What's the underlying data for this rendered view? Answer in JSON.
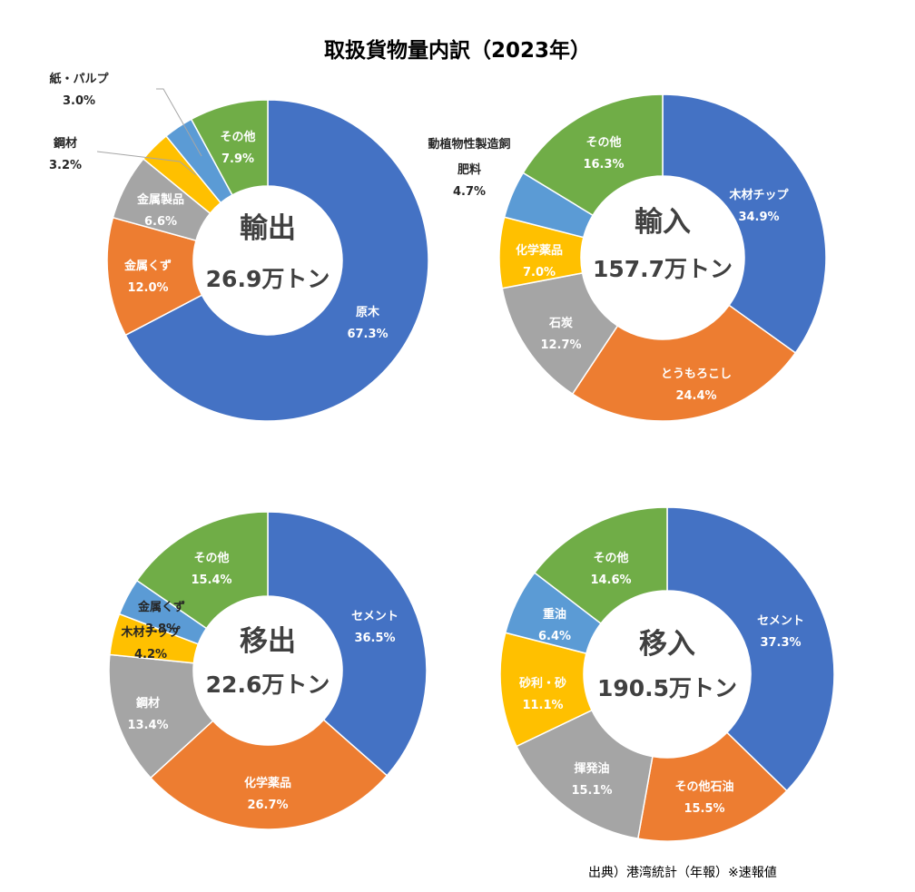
{
  "title": "取扱貨物量内訳（2023年）",
  "source": "出典）港湾統計（年報）※速報値",
  "chart_data": [
    {
      "type": "pie",
      "name": "輸出",
      "total": "26.9万トン",
      "slices": [
        {
          "label": "原木",
          "pct_label": "67.3%",
          "value": 67.3,
          "color": "#4472C4"
        },
        {
          "label": "金属くず",
          "pct_label": "12.0%",
          "value": 12.0,
          "color": "#ED7D31"
        },
        {
          "label": "金属製品",
          "pct_label": "6.6%",
          "value": 6.6,
          "color": "#A5A5A5"
        },
        {
          "label": "鋼材",
          "pct_label": "3.2%",
          "value": 3.2,
          "color": "#FFC000"
        },
        {
          "label": "紙・パルプ",
          "pct_label": "3.0%",
          "value": 3.0,
          "color": "#5B9BD5"
        },
        {
          "label": "その他",
          "pct_label": "7.9%",
          "value": 7.9,
          "color": "#70AD47"
        }
      ]
    },
    {
      "type": "pie",
      "name": "輸入",
      "total": "157.7万トン",
      "slices": [
        {
          "label": "木材チップ",
          "pct_label": "34.9%",
          "value": 34.9,
          "color": "#4472C4"
        },
        {
          "label": "とうもろこし",
          "pct_label": "24.4%",
          "value": 24.4,
          "color": "#ED7D31"
        },
        {
          "label": "石炭",
          "pct_label": "12.7%",
          "value": 12.7,
          "color": "#A5A5A5"
        },
        {
          "label": "化学薬品",
          "pct_label": "7.0%",
          "value": 7.0,
          "color": "#FFC000"
        },
        {
          "label": "動植物性製造飼肥料",
          "pct_label": "4.7%",
          "value": 4.7,
          "color": "#5B9BD5"
        },
        {
          "label": "その他",
          "pct_label": "16.3%",
          "value": 16.3,
          "color": "#70AD47"
        }
      ]
    },
    {
      "type": "pie",
      "name": "移出",
      "total": "22.6万トン",
      "slices": [
        {
          "label": "セメント",
          "pct_label": "36.5%",
          "value": 36.5,
          "color": "#4472C4"
        },
        {
          "label": "化学薬品",
          "pct_label": "26.7%",
          "value": 26.7,
          "color": "#ED7D31"
        },
        {
          "label": "鋼材",
          "pct_label": "13.4%",
          "value": 13.4,
          "color": "#A5A5A5"
        },
        {
          "label": "木材チップ",
          "pct_label": "4.2%",
          "value": 4.2,
          "color": "#FFC000"
        },
        {
          "label": "金属くず",
          "pct_label": "3.8%",
          "value": 3.8,
          "color": "#5B9BD5"
        },
        {
          "label": "その他",
          "pct_label": "15.4%",
          "value": 15.4,
          "color": "#70AD47"
        }
      ]
    },
    {
      "type": "pie",
      "name": "移入",
      "total": "190.5万トン",
      "slices": [
        {
          "label": "セメント",
          "pct_label": "37.3%",
          "value": 37.3,
          "color": "#4472C4"
        },
        {
          "label": "その他石油",
          "pct_label": "15.5%",
          "value": 15.5,
          "color": "#ED7D31"
        },
        {
          "label": "揮発油",
          "pct_label": "15.1%",
          "value": 15.1,
          "color": "#A5A5A5"
        },
        {
          "label": "砂利・砂",
          "pct_label": "11.1%",
          "value": 11.1,
          "color": "#FFC000"
        },
        {
          "label": "重油",
          "pct_label": "6.4%",
          "value": 6.4,
          "color": "#5B9BD5"
        },
        {
          "label": "その他",
          "pct_label": "14.6%",
          "value": 14.6,
          "color": "#70AD47"
        }
      ]
    }
  ]
}
